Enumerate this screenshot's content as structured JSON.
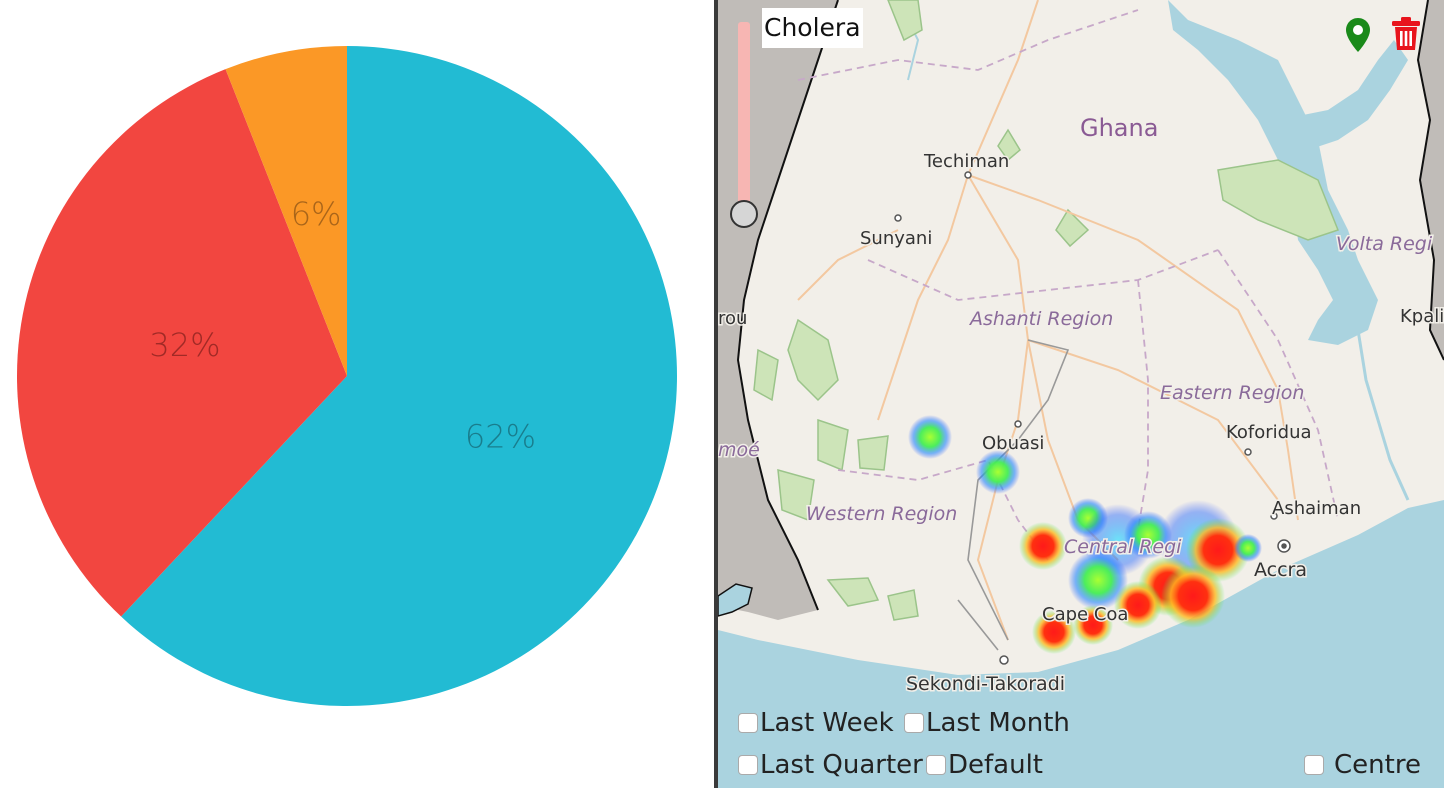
{
  "chart_data": {
    "type": "pie",
    "title": "",
    "slices": [
      {
        "value": 62,
        "label": "62%",
        "color": "#22bbd3"
      },
      {
        "value": 32,
        "label": "32%",
        "color": "#f24640"
      },
      {
        "value": 6,
        "label": "6%",
        "color": "#fb9826"
      }
    ],
    "label_color_on_slice": {
      "62%": "#197d8d",
      "32%": "#a12a26",
      "6%": "#a9651a"
    }
  },
  "map": {
    "layer_title": "Cholera",
    "country": "Ghana",
    "places": [
      "Techiman",
      "Sunyani",
      "Obuasi",
      "Koforidua",
      "Ashaiman",
      "Accra",
      "Sekondi-Takoradi",
      "Cape Coast",
      "Kpalime"
    ],
    "place_labels": {
      "techiman": "Techiman",
      "sunyani": "Sunyani",
      "obuasi": "Obuasi",
      "koforidua": "Koforidua",
      "ashaiman": "Ashaiman",
      "accra": "Accra",
      "sekondi": "Sekondi-Takoradi",
      "cape_coast": "Cape Coa",
      "kpalime": "Kpali",
      "rou": "rou",
      "moe": "moé"
    },
    "regions": {
      "ashanti": "Ashanti Region",
      "eastern": "Eastern Region",
      "western": "Western Region",
      "central": "Central Regi",
      "volta": "Volta Regi"
    },
    "icons": {
      "pin": "map-pin-icon",
      "trash": "trash-icon"
    },
    "colors": {
      "pin": "#1a8a1a",
      "trash": "#e8141c",
      "water": "#aad3df",
      "land": "#f2efe9",
      "park": "#cde4b8",
      "slider_track": "#f7b6b3"
    },
    "filters": {
      "last_week": "Last Week",
      "last_month": "Last Month",
      "last_quarter": "Last Quarter",
      "default": "Default",
      "centre": "Centre"
    }
  }
}
